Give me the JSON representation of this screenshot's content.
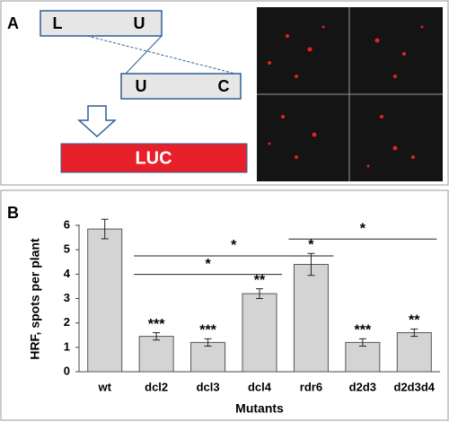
{
  "panel_a": {
    "label": "A",
    "construct": {
      "top_left": "L",
      "top_right": "U",
      "bottom_left": "U",
      "bottom_right": "C"
    },
    "product": "LUC"
  },
  "chart_data": {
    "type": "bar",
    "panel_label": "B",
    "x_label": "Mutants",
    "y_label": "HRF, spots per plant",
    "categories": [
      "wt",
      "dcl2",
      "dcl3",
      "dcl4",
      "rdr6",
      "d2d3",
      "d2d3d4"
    ],
    "values": [
      5.85,
      1.45,
      1.2,
      3.2,
      4.4,
      1.2,
      1.6
    ],
    "errors": [
      0.4,
      0.15,
      0.15,
      0.2,
      0.45,
      0.15,
      0.15
    ],
    "significance": [
      null,
      "***",
      "***",
      "**",
      "*",
      "***",
      "**"
    ],
    "comparisons": [
      {
        "from": 1,
        "to": 4,
        "label": "*"
      },
      {
        "from": 1,
        "to": 3,
        "label": "*"
      },
      {
        "from": 4,
        "to": 6,
        "label": "*"
      }
    ],
    "color": "#d4d4d4",
    "ylim": [
      0,
      6
    ],
    "yticks": [
      0,
      1,
      2,
      3,
      4,
      5,
      6
    ],
    "grid": false
  }
}
